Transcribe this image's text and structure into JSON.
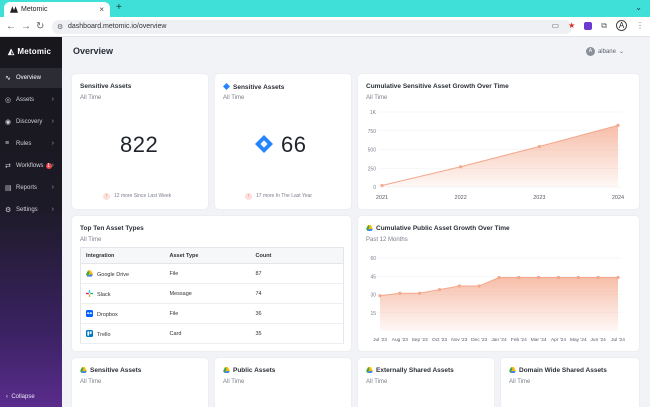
{
  "browser": {
    "tab_title": "Metomic",
    "tab_close": "×",
    "new_tab": "+",
    "url": "dashboard.metomic.io/overview",
    "profile_initial": "A"
  },
  "sidebar": {
    "brand": "Metomic",
    "items": [
      {
        "label": "Overview",
        "icon": "pulse-icon",
        "active": true,
        "chevron": false
      },
      {
        "label": "Assets",
        "icon": "globe-icon",
        "active": false,
        "chevron": true
      },
      {
        "label": "Discovery",
        "icon": "compass-icon",
        "active": false,
        "chevron": true
      },
      {
        "label": "Rules",
        "icon": "list-icon",
        "active": false,
        "chevron": true
      },
      {
        "label": "Workflows",
        "icon": "workflow-icon",
        "active": false,
        "chevron": true,
        "badge": "1"
      },
      {
        "label": "Reports",
        "icon": "chart-icon",
        "active": false,
        "chevron": true
      },
      {
        "label": "Settings",
        "icon": "gear-icon",
        "active": false,
        "chevron": true
      }
    ],
    "collapse": "Collapse"
  },
  "header": {
    "title": "Overview",
    "user": "albane",
    "user_initial": "A"
  },
  "cards": {
    "sensitive_all": {
      "title": "Sensitive Assets",
      "sub": "All Time",
      "value": "822",
      "trend": "12 more Since Last Week"
    },
    "sensitive_jira": {
      "title": "Sensitive Assets",
      "sub": "All Time",
      "value": "66",
      "trend": "17 more In The Last Year"
    },
    "top_ten": {
      "title": "Top Ten Asset Types",
      "sub": "All Time",
      "columns": [
        "Integration",
        "Asset Type",
        "Count"
      ],
      "rows": [
        {
          "integration": "Google Drive",
          "type": "File",
          "count": "87"
        },
        {
          "integration": "Slack",
          "type": "Message",
          "count": "74"
        },
        {
          "integration": "Dropbox",
          "type": "File",
          "count": "36"
        },
        {
          "integration": "Trello",
          "type": "Card",
          "count": "35"
        }
      ]
    },
    "bottom": [
      {
        "title": "Sensitive Assets",
        "sub": "All Time"
      },
      {
        "title": "Public Assets",
        "sub": "All Time"
      },
      {
        "title": "Externally Shared Assets",
        "sub": "All Time"
      },
      {
        "title": "Domain Wide Shared Assets",
        "sub": "All Time"
      }
    ]
  },
  "colors": {
    "accent": "#f4a88c",
    "sidebar_top": "#17171c",
    "sidebar_bottom": "#5a2c8d"
  },
  "chart_data": [
    {
      "type": "area",
      "title": "Cumulative Sensitive Asset Growth Over Time",
      "subtitle": "All Time",
      "x": [
        "2021",
        "2022",
        "2023",
        "2024"
      ],
      "points": [
        {
          "x": 2021.0,
          "y": 20
        },
        {
          "x": 2022.0,
          "y": 270
        },
        {
          "x": 2023.0,
          "y": 540
        },
        {
          "x": 2024.0,
          "y": 822
        }
      ],
      "yticks": [
        "1K",
        "750",
        "500",
        "250",
        "0"
      ],
      "ylim": [
        0,
        1000
      ],
      "grid": true
    },
    {
      "type": "area",
      "title": "Cumulative Public Asset Growth Over Time",
      "subtitle": "Past 12 Months",
      "categories": [
        "Jul '23",
        "Aug '23",
        "Sep '23",
        "Oct '23",
        "Nov '23",
        "Dec '23",
        "Jan '24",
        "Feb '24",
        "Mar '24",
        "Apr '24",
        "May '24",
        "Jun '24",
        "Jul '24"
      ],
      "values": [
        29,
        31,
        31,
        34,
        37,
        37,
        44,
        44,
        44,
        44,
        44,
        44,
        44
      ],
      "yticks": [
        "60",
        "45",
        "30",
        "15"
      ],
      "ylim": [
        0,
        60
      ],
      "grid": true
    }
  ]
}
